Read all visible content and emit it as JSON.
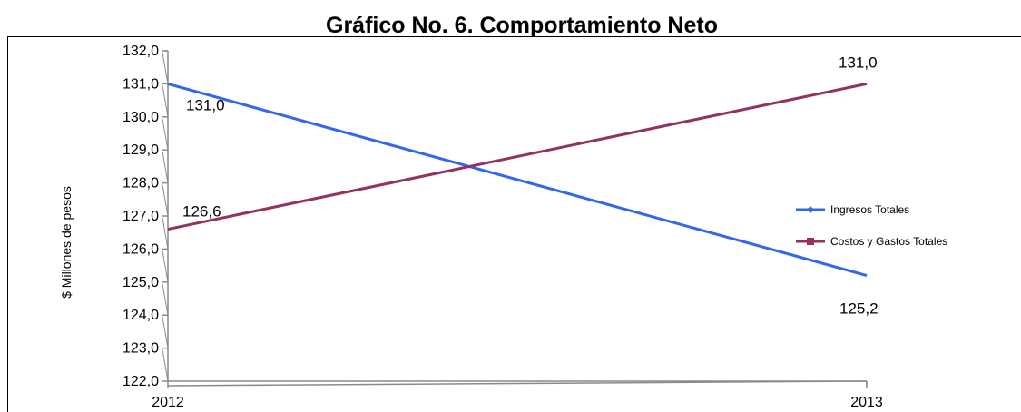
{
  "chart_data": {
    "type": "line",
    "title": "Gráfico No. 6. Comportamiento Neto",
    "xlabel": "",
    "ylabel": "$ Millones de pesos",
    "categories": [
      "2012",
      "2013"
    ],
    "ylim": [
      122.0,
      132.0
    ],
    "yticks": [
      "122,0",
      "123,0",
      "124,0",
      "125,0",
      "126,0",
      "127,0",
      "128,0",
      "129,0",
      "130,0",
      "131,0",
      "132,0"
    ],
    "legend_position": "right",
    "grid": false,
    "series": [
      {
        "name": "Ingresos Totales",
        "values": [
          131.0,
          125.2
        ],
        "labels": [
          "131,0",
          "125,2"
        ],
        "color": "#3366ee"
      },
      {
        "name": "Costos y Gastos Totales",
        "values": [
          126.6,
          131.0
        ],
        "labels": [
          "126,6",
          "131,0"
        ],
        "color": "#93325f"
      }
    ]
  }
}
